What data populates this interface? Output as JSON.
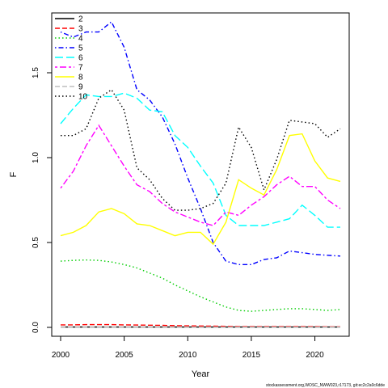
{
  "chart_data": {
    "type": "line",
    "title": "",
    "xlabel": "Year",
    "ylabel": "F",
    "xlim": [
      2000,
      2022
    ],
    "ylim": [
      0,
      1.8
    ],
    "xticks": [
      2000,
      2005,
      2010,
      2015,
      2020
    ],
    "yticks": [
      0.0,
      0.5,
      1.0,
      1.5
    ],
    "ytick_labels": [
      "0.0",
      "0.5",
      "1.0",
      "1.5"
    ],
    "grid": false,
    "legend_position": "top-left",
    "x": [
      2000,
      2001,
      2002,
      2003,
      2004,
      2005,
      2006,
      2007,
      2008,
      2009,
      2010,
      2011,
      2012,
      2013,
      2014,
      2015,
      2016,
      2017,
      2018,
      2019,
      2020,
      2021,
      2022
    ],
    "series": [
      {
        "name": "2",
        "color": "#000000",
        "dash": "solid",
        "values": [
          0.002,
          0.002,
          0.002,
          0.002,
          0.002,
          0.002,
          0.002,
          0.002,
          0.002,
          0.002,
          0.002,
          0.002,
          0.002,
          0.002,
          0.002,
          0.002,
          0.002,
          0.002,
          0.002,
          0.002,
          0.002,
          0.002,
          0.002
        ]
      },
      {
        "name": "3",
        "color": "#ff0000",
        "dash": "dashed",
        "values": [
          0.015,
          0.015,
          0.016,
          0.016,
          0.016,
          0.015,
          0.014,
          0.013,
          0.012,
          0.01,
          0.009,
          0.008,
          0.007,
          0.006,
          0.005,
          0.005,
          0.005,
          0.005,
          0.005,
          0.005,
          0.005,
          0.004,
          0.004
        ]
      },
      {
        "name": "4",
        "color": "#00cd00",
        "dash": "dotted",
        "values": [
          0.39,
          0.395,
          0.397,
          0.395,
          0.385,
          0.37,
          0.35,
          0.32,
          0.29,
          0.25,
          0.215,
          0.18,
          0.15,
          0.12,
          0.1,
          0.095,
          0.1,
          0.105,
          0.11,
          0.11,
          0.105,
          0.1,
          0.105
        ]
      },
      {
        "name": "5",
        "color": "#0000ff",
        "dash": "dotdash",
        "values": [
          1.74,
          1.71,
          1.74,
          1.74,
          1.8,
          1.65,
          1.4,
          1.34,
          1.24,
          1.08,
          0.88,
          0.7,
          0.5,
          0.39,
          0.37,
          0.37,
          0.4,
          0.41,
          0.45,
          0.44,
          0.43,
          0.425,
          0.42
        ]
      },
      {
        "name": "6",
        "color": "#00ffff",
        "dash": "longdash",
        "values": [
          1.2,
          1.29,
          1.37,
          1.36,
          1.36,
          1.38,
          1.35,
          1.28,
          1.27,
          1.13,
          1.06,
          0.95,
          0.85,
          0.66,
          0.6,
          0.6,
          0.6,
          0.62,
          0.64,
          0.72,
          0.66,
          0.59,
          0.59
        ]
      },
      {
        "name": "7",
        "color": "#ff00ff",
        "dash": "twodash",
        "values": [
          0.82,
          0.92,
          1.07,
          1.19,
          1.07,
          0.95,
          0.84,
          0.8,
          0.73,
          0.68,
          0.65,
          0.62,
          0.6,
          0.68,
          0.66,
          0.72,
          0.77,
          0.84,
          0.89,
          0.83,
          0.83,
          0.75,
          0.7
        ]
      },
      {
        "name": "8",
        "color": "#ffff00",
        "dash": "solid",
        "values": [
          0.54,
          0.56,
          0.6,
          0.68,
          0.7,
          0.67,
          0.61,
          0.6,
          0.57,
          0.54,
          0.56,
          0.56,
          0.49,
          0.62,
          0.87,
          0.82,
          0.78,
          0.93,
          1.13,
          1.14,
          0.98,
          0.88,
          0.86
        ]
      },
      {
        "name": "9",
        "color": "#bebebe",
        "dash": "dashed",
        "values": [
          0.002,
          0.002,
          0.002,
          0.002,
          0.002,
          0.002,
          0.002,
          0.002,
          0.002,
          0.002,
          0.002,
          0.002,
          0.002,
          0.002,
          0.002,
          0.002,
          0.002,
          0.002,
          0.002,
          0.002,
          0.002,
          0.002,
          0.002
        ]
      },
      {
        "name": "10",
        "color": "#000000",
        "dash": "dotted",
        "values": [
          1.13,
          1.13,
          1.17,
          1.35,
          1.4,
          1.28,
          0.94,
          0.87,
          0.76,
          0.69,
          0.69,
          0.7,
          0.73,
          0.85,
          1.18,
          1.06,
          0.81,
          0.99,
          1.22,
          1.21,
          1.2,
          1.12,
          1.17
        ]
      }
    ]
  },
  "footer": {
    "text": "stockassessment.org,WOSC_NWW023,r17173, git:ec2c2a0c6dde"
  }
}
